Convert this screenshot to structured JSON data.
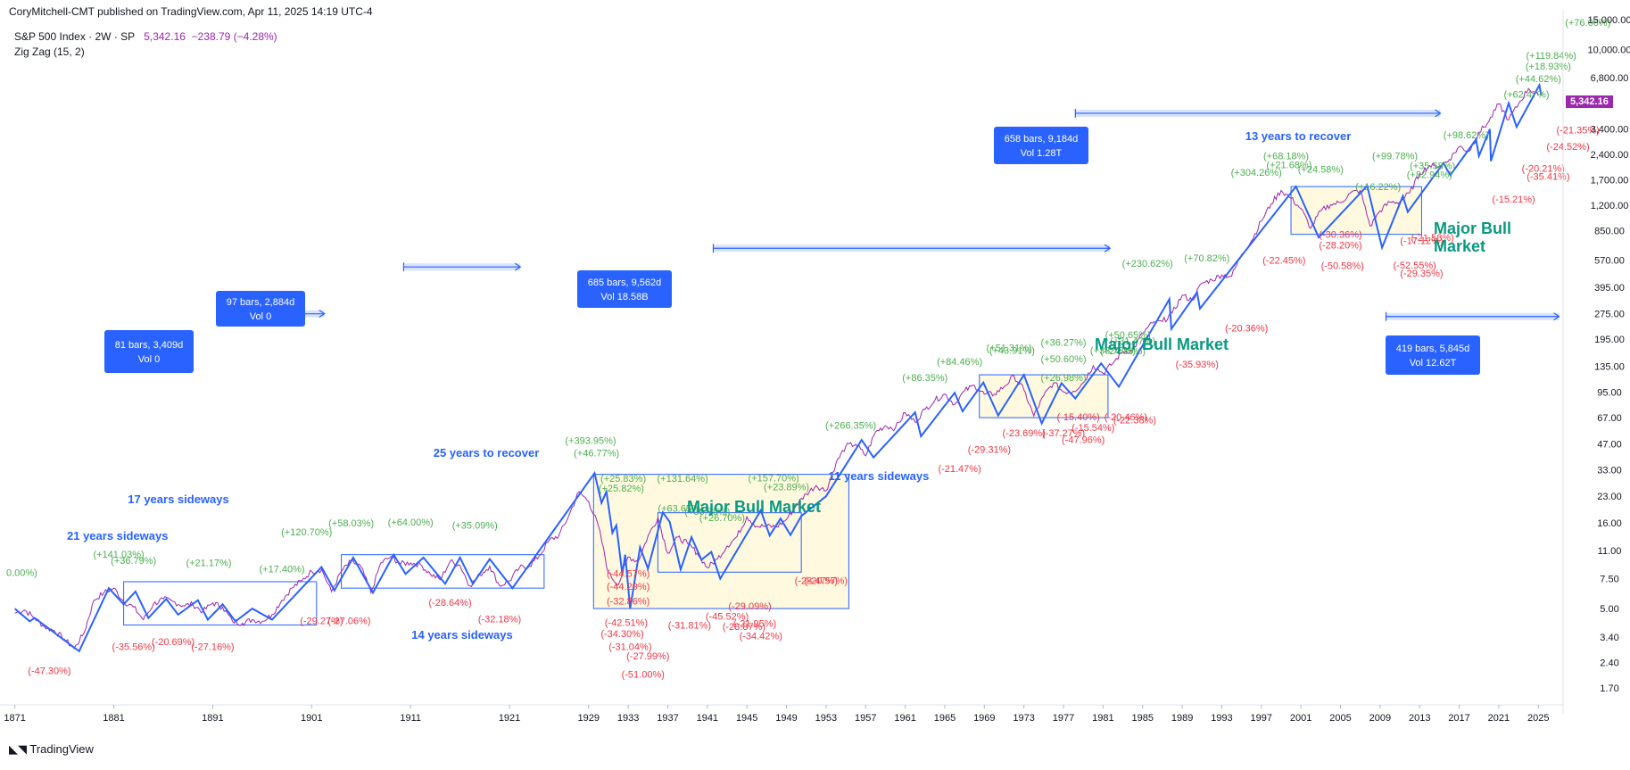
{
  "header": {
    "published": "CoryMitchell-CMT published on TradingView.com, Apr 11, 2025 14:19 UTC-4"
  },
  "legend": {
    "symbol": "S&P 500 Index · 2W · SP",
    "price": "5,342.16",
    "change": "−238.79 (−4.28%)",
    "indicator": "Zig Zag (15, 2)"
  },
  "last_price_badge": "5,342.16",
  "brand": "TradingView",
  "colors": {
    "price_line": "#9c27b0",
    "zigzag": "#2962ff",
    "up_label": "#4caf50",
    "down_label": "#f23645",
    "annotation_blue": "#2962ff",
    "annotation_green": "#089981",
    "box_fill": "#fff9e0",
    "badge": "#2962ff"
  },
  "chart_data": {
    "type": "line",
    "title": "",
    "y_scale": "log",
    "xlim": [
      1869.5,
      2027.5
    ],
    "ylim": [
      1.35,
      15000
    ],
    "x_ticks": [
      "1871",
      "1881",
      "1891",
      "1901",
      "1911",
      "1921",
      "1929",
      "1933",
      "1937",
      "1941",
      "1945",
      "1949",
      "1953",
      "1957",
      "1961",
      "1965",
      "1969",
      "1973",
      "1977",
      "1981",
      "1985",
      "1989",
      "1993",
      "1997",
      "2001",
      "2005",
      "2009",
      "2013",
      "2017",
      "2021",
      "2025"
    ],
    "y_ticks": [
      "15,000.00",
      "10,000.00",
      "6,800.00",
      "3,400.00",
      "2,400.00",
      "1,700.00",
      "1,200.00",
      "850.00",
      "570.00",
      "395.00",
      "275.00",
      "195.00",
      "135.00",
      "95.00",
      "67.00",
      "47.00",
      "33.00",
      "23.00",
      "16.00",
      "11.00",
      "7.50",
      "5.00",
      "3.40",
      "2.40",
      "1.70"
    ],
    "series": [
      {
        "x": [
          1871,
          1872,
          1873,
          1874,
          1875,
          1876,
          1877,
          1878,
          1879,
          1880,
          1881,
          1882,
          1883,
          1884,
          1885,
          1886,
          1887,
          1888,
          1889,
          1890,
          1891,
          1892,
          1893,
          1894,
          1895,
          1896,
          1897,
          1898,
          1899,
          1900,
          1901,
          1902,
          1903,
          1904,
          1905,
          1906,
          1907,
          1908,
          1909,
          1910,
          1911,
          1912,
          1913,
          1914,
          1915,
          1916,
          1917,
          1918,
          1919,
          1920,
          1921,
          1922,
          1923,
          1924,
          1925,
          1926,
          1927,
          1928,
          1929,
          1930,
          1931,
          1932,
          1933,
          1934,
          1935,
          1936,
          1937,
          1938,
          1939,
          1940,
          1941,
          1942,
          1943,
          1944,
          1945,
          1946,
          1947,
          1948,
          1949,
          1950,
          1951,
          1952,
          1953,
          1954,
          1955,
          1956,
          1957,
          1958,
          1959,
          1960,
          1961,
          1962,
          1963,
          1964,
          1965,
          1966,
          1967,
          1968,
          1969,
          1970,
          1971,
          1972,
          1973,
          1974,
          1975,
          1976,
          1977,
          1978,
          1979,
          1980,
          1981,
          1982,
          1983,
          1984,
          1985,
          1986,
          1987,
          1988,
          1989,
          1990,
          1991,
          1992,
          1993,
          1994,
          1995,
          1996,
          1997,
          1998,
          1999,
          2000,
          2001,
          2002,
          2003,
          2004,
          2005,
          2006,
          2007,
          2008,
          2009,
          2010,
          2011,
          2012,
          2013,
          2014,
          2015,
          2016,
          2017,
          2018,
          2019,
          2020,
          2021,
          2022,
          2023,
          2024,
          2025
        ],
        "values": [
          4.7,
          4.9,
          4.4,
          3.9,
          3.7,
          3.3,
          2.9,
          3.6,
          5.6,
          6.2,
          6.6,
          5.5,
          5.1,
          4.3,
          5.3,
          5.7,
          5.5,
          5.2,
          5.3,
          4.8,
          5.4,
          5.1,
          4.2,
          4.1,
          4.3,
          4.2,
          4.6,
          5.6,
          6.6,
          7.3,
          8.3,
          8.5,
          6.3,
          8.3,
          9.5,
          8.8,
          6.2,
          9.3,
          10.1,
          9.2,
          9.3,
          9.1,
          8.0,
          7.4,
          9.5,
          9.0,
          6.8,
          7.9,
          8.9,
          6.8,
          7.3,
          8.7,
          8.9,
          10.2,
          12.6,
          13.5,
          17.7,
          24.4,
          21.5,
          15.3,
          8.1,
          6.9,
          10.1,
          9.5,
          13.4,
          17.2,
          10.6,
          13.2,
          12.1,
          10.6,
          8.7,
          9.8,
          11.7,
          13.3,
          17.4,
          15.3,
          15.3,
          15.2,
          16.8,
          20.4,
          23.8,
          26.6,
          24.8,
          35.9,
          45.5,
          46.7,
          39.9,
          55.2,
          59.9,
          58.1,
          71.6,
          63.1,
          75.0,
          84.8,
          92.4,
          80.3,
          96.5,
          103.9,
          92.1,
          92.2,
          102.1,
          118.1,
          97.6,
          68.6,
          90.2,
          107.5,
          95.1,
          96.1,
          107.9,
          135.8,
          122.6,
          140.6,
          164.9,
          167.2,
          211.3,
          242.2,
          247.1,
          277.7,
          353.4,
          330.2,
          417.1,
          435.7,
          466.5,
          459.3,
          615.9,
          740.7,
          970.4,
          1229.2,
          1469.3,
          1320.3,
          1148.1,
          879.8,
          1111.9,
          1211.9,
          1248.3,
          1418.3,
          1468.4,
          903.3,
          1115.1,
          1257.6,
          1257.6,
          1426.2,
          1848.4,
          2058.9,
          2043.9,
          2238.8,
          2673.6,
          2506.9,
          3230.8,
          3756.1,
          4766.2,
          3839.5,
          4769.8,
          5881.6,
          5342.2
        ],
        "name": ""
      }
    ],
    "zigzag_up_labels": [
      "0.00%)",
      "(+141.03%)",
      "(+36.79%)",
      "(+21.17%)",
      "(+17.40%)",
      "(+120.70%)",
      "(+58.03%)",
      "(+64.00%)",
      "(+35.09%)",
      "(+393.95%)",
      "(+46.77%)",
      "(+25.83%)",
      "(+25.82%)",
      "(+131.64%)",
      "(+63.65%)",
      "(+36.78%)",
      "(+26.70%)",
      "(+157.70%)",
      "(+23.89%)",
      "(+266.35%)",
      "(+86.35%)",
      "(+84.46%)",
      "(+51.31%)",
      "(+43.91%)",
      "(+36.27%)",
      "(+50.60%)",
      "(+26.98%)",
      "(+33.78%)",
      "(+24.39%)",
      "(+50.65%)",
      "(+31.47%)",
      "(+230.62%)",
      "(+70.82%)",
      "(+304.26%)",
      "(+68.18%)",
      "(+21.68%)",
      "(+24.58%)",
      "(+99.78%)",
      "(+35.58%)",
      "(+82.94%)",
      "(+16.22%)",
      "(+98.62%)",
      "(+62.47%)",
      "(+44.62%)",
      "(+119.84%)",
      "(+18.93%)",
      "(+76.06%)"
    ],
    "zigzag_down_labels": [
      "(-47.30%)",
      "(-35.56%)",
      "(-20.69%)",
      "(-27.16%)",
      "(-29.27%)",
      "(-27.06%)",
      "(-28.64%)",
      "(-32.18%)",
      "(-44.57%)",
      "(-44.29%)",
      "(-32.86%)",
      "(-42.51%)",
      "(-34.30%)",
      "(-31.04%)",
      "(-27.99%)",
      "(-51.00%)",
      "(-31.81%)",
      "(-45.52%)",
      "(-28.87%)",
      "(-29.09%)",
      "(-21.95%)",
      "(-34.42%)",
      "(-28.47%)",
      "(-20.57%)",
      "(-21.47%)",
      "(-29.31%)",
      "(-23.69%)",
      "(-37.27%)",
      "(-15.40%)",
      "(-15.54%)",
      "(-47.96%)",
      "(-20.46%)",
      "(-22.38%)",
      "(-35.93%)",
      "(-20.36%)",
      "(-22.45%)",
      "(-30.36%)",
      "(-28.20%)",
      "(-50.58%)",
      "(-52.55%)",
      "(-29.35%)",
      "(-17.12%)",
      "(-21.58%)",
      "(-15.21%)",
      "(-20.21%)",
      "(-35.41%)",
      "(-24.52%)",
      "(-21.35%)"
    ],
    "annotations": [
      {
        "text": "21 years sideways",
        "color": "blue"
      },
      {
        "text": "17 years sideways",
        "color": "blue"
      },
      {
        "text": "25 years to recover",
        "color": "blue"
      },
      {
        "text": "14 years sideways",
        "color": "blue"
      },
      {
        "text": "11 years sideways",
        "color": "blue"
      },
      {
        "text": "13 years to recover",
        "color": "blue"
      },
      {
        "text": "Major Bull Market",
        "color": "green"
      },
      {
        "text": "Major Bull Market",
        "color": "green"
      },
      {
        "text": "Major Bull Market",
        "color": "green"
      }
    ],
    "range_badges": [
      {
        "line1": "81 bars, 3,409d",
        "line2": "Vol 0"
      },
      {
        "line1": "97 bars, 2,884d",
        "line2": "Vol 0"
      },
      {
        "line1": "685 bars, 9,562d",
        "line2": "Vol 18.58B"
      },
      {
        "line1": "658 bars, 9,184d",
        "line2": "Vol 1.28T"
      },
      {
        "line1": "419 bars, 5,845d",
        "line2": "Vol 12.62T"
      }
    ],
    "grid": false,
    "legend_position": "top-left"
  }
}
